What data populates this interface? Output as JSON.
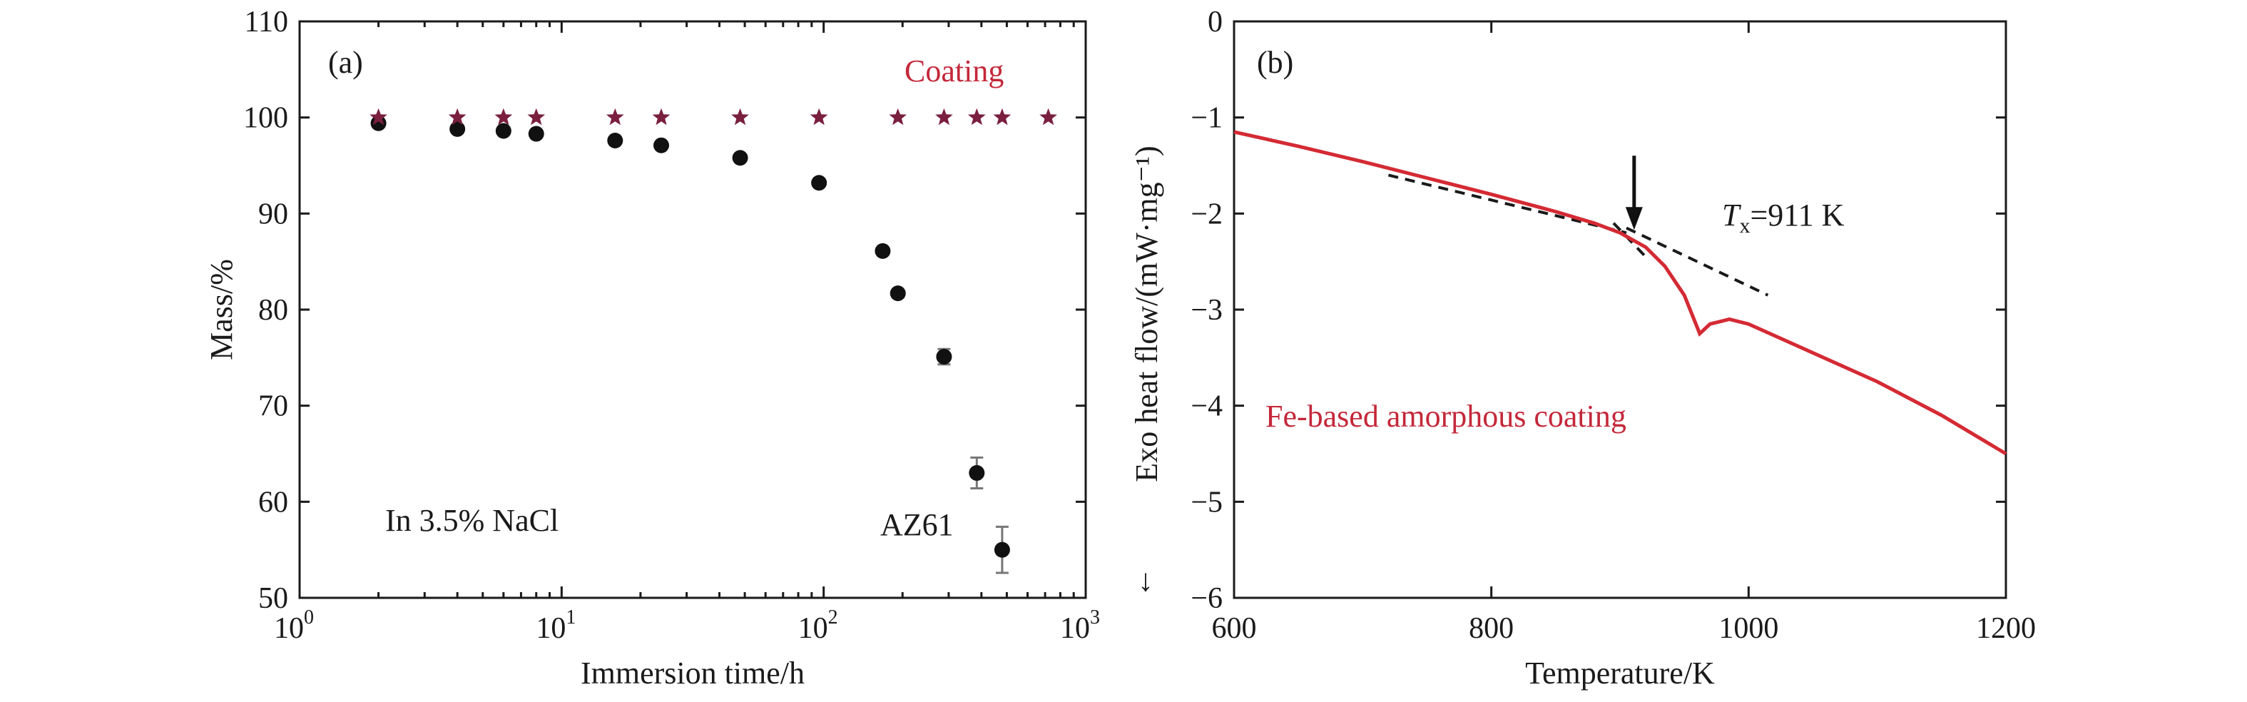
{
  "chart_data": [
    {
      "panel_label": "(a)",
      "type": "scatter",
      "xlabel": "Immersion time/h",
      "ylabel": "Mass/%",
      "x_scale": "log",
      "xlim": [
        1,
        1000
      ],
      "ylim": [
        50,
        110
      ],
      "x_ticks": [
        {
          "value": 1,
          "base": "10",
          "exp": "0"
        },
        {
          "value": 10,
          "base": "10",
          "exp": "1"
        },
        {
          "value": 100,
          "base": "10",
          "exp": "2"
        },
        {
          "value": 1000,
          "base": "10",
          "exp": "3"
        }
      ],
      "y_ticks": [
        50,
        60,
        70,
        80,
        90,
        100,
        110
      ],
      "annotations": {
        "solution": "In 3.5% NaCl",
        "coating_label": "Coating",
        "substrate_label": "AZ61"
      },
      "series": [
        {
          "name": "Coating",
          "marker": "star",
          "color": "#7a1f3d",
          "points": [
            {
              "x": 2,
              "y": 100
            },
            {
              "x": 4,
              "y": 100
            },
            {
              "x": 6,
              "y": 100
            },
            {
              "x": 8,
              "y": 100
            },
            {
              "x": 16,
              "y": 100
            },
            {
              "x": 24,
              "y": 100
            },
            {
              "x": 48,
              "y": 100
            },
            {
              "x": 96,
              "y": 100
            },
            {
              "x": 192,
              "y": 100
            },
            {
              "x": 288,
              "y": 100
            },
            {
              "x": 384,
              "y": 100
            },
            {
              "x": 480,
              "y": 100
            },
            {
              "x": 720,
              "y": 100
            }
          ]
        },
        {
          "name": "AZ61",
          "marker": "circle",
          "color": "#111111",
          "points": [
            {
              "x": 2,
              "y": 99.4,
              "err": 0.3
            },
            {
              "x": 4,
              "y": 98.8,
              "err": 0.3
            },
            {
              "x": 6,
              "y": 98.6,
              "err": 0.3
            },
            {
              "x": 8,
              "y": 98.3,
              "err": 0.3
            },
            {
              "x": 16,
              "y": 97.6,
              "err": 0.3
            },
            {
              "x": 24,
              "y": 97.1,
              "err": 0.3
            },
            {
              "x": 48,
              "y": 95.8,
              "err": 0.4
            },
            {
              "x": 96,
              "y": 93.2,
              "err": 0.4
            },
            {
              "x": 168,
              "y": 86.1,
              "err": 0.5
            },
            {
              "x": 192,
              "y": 81.7,
              "err": 0.5
            },
            {
              "x": 288,
              "y": 75.1,
              "err": 0.8
            },
            {
              "x": 384,
              "y": 63.0,
              "err": 1.6
            },
            {
              "x": 480,
              "y": 55.0,
              "err": 2.4
            }
          ]
        }
      ],
      "grid": false,
      "legend": "none"
    },
    {
      "panel_label": "(b)",
      "type": "line",
      "xlabel": "Temperature/K",
      "ylabel": "Exo heat flow/(mW·mg⁻¹)",
      "ylabel_arrow": "↓",
      "xlim": [
        600,
        1200
      ],
      "ylim": [
        -6,
        0
      ],
      "x_ticks": [
        600,
        800,
        1000,
        1200
      ],
      "y_ticks": [
        "0",
        "−1",
        "−2",
        "−3",
        "−4",
        "−5",
        "−6"
      ],
      "y_tick_values": [
        0,
        -1,
        -2,
        -3,
        -4,
        -5,
        -6
      ],
      "annotations": {
        "tx_symbol": "T",
        "tx_sub": "x",
        "tx_value": "=911 K",
        "tx_x": 911,
        "tx_y": -2.2,
        "curve_label": "Fe-based amorphous coating"
      },
      "series": [
        {
          "name": "Fe-based amorphous coating",
          "color": "#d42a34",
          "points": [
            {
              "x": 600,
              "y": -1.15
            },
            {
              "x": 650,
              "y": -1.3
            },
            {
              "x": 700,
              "y": -1.46
            },
            {
              "x": 750,
              "y": -1.63
            },
            {
              "x": 800,
              "y": -1.8
            },
            {
              "x": 850,
              "y": -1.98
            },
            {
              "x": 880,
              "y": -2.1
            },
            {
              "x": 900,
              "y": -2.2
            },
            {
              "x": 920,
              "y": -2.35
            },
            {
              "x": 935,
              "y": -2.55
            },
            {
              "x": 950,
              "y": -2.85
            },
            {
              "x": 962,
              "y": -3.25
            },
            {
              "x": 970,
              "y": -3.15
            },
            {
              "x": 985,
              "y": -3.1
            },
            {
              "x": 1000,
              "y": -3.15
            },
            {
              "x": 1050,
              "y": -3.45
            },
            {
              "x": 1100,
              "y": -3.75
            },
            {
              "x": 1150,
              "y": -4.1
            },
            {
              "x": 1200,
              "y": -4.5
            }
          ]
        }
      ],
      "tangents": [
        {
          "style": "dashed",
          "color": "#1a1a1a",
          "from": {
            "x": 720,
            "y": -1.6
          },
          "to": {
            "x": 905,
            "y": -2.2
          }
        },
        {
          "style": "dashed",
          "color": "#1a1a1a",
          "from": {
            "x": 895,
            "y": -2.1
          },
          "to": {
            "x": 920,
            "y": -2.45
          }
        },
        {
          "style": "dashed",
          "color": "#1a1a1a",
          "from": {
            "x": 905,
            "y": -2.15
          },
          "to": {
            "x": 1015,
            "y": -2.85
          }
        }
      ],
      "grid": false,
      "legend": "none"
    }
  ]
}
